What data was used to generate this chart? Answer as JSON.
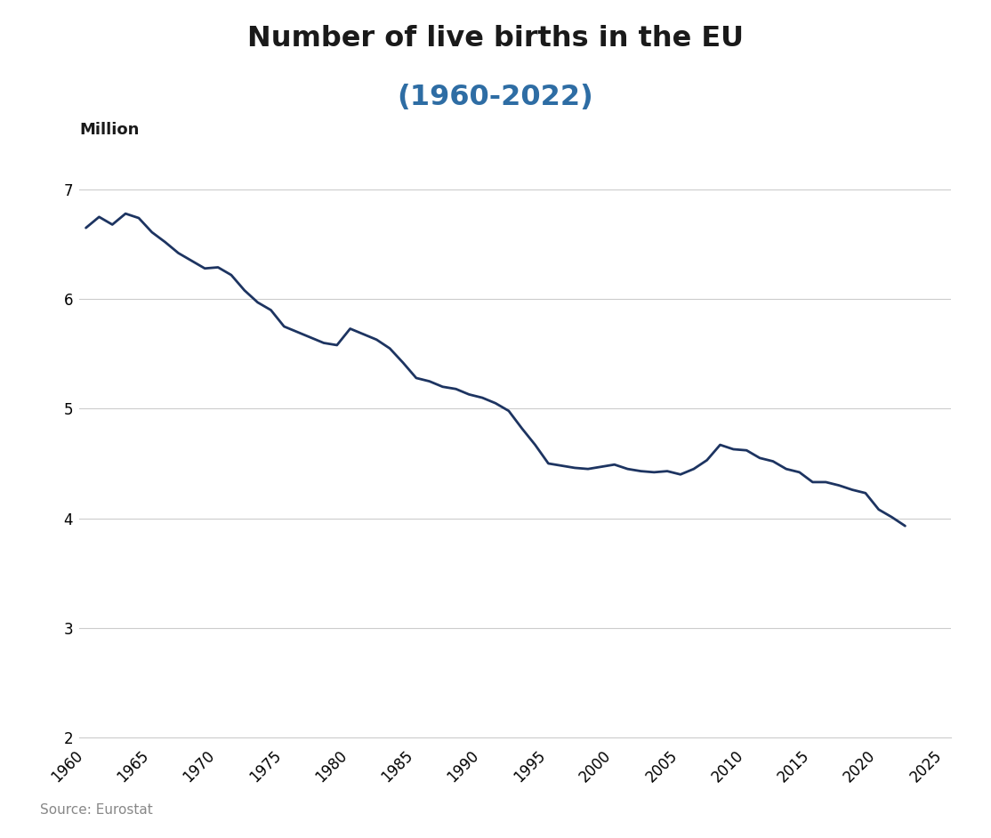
{
  "title_line1": "Number of live births in the EU",
  "title_line2": "(1960-2022)",
  "ylabel": "Million",
  "source": "Source: Eurostat",
  "line_color": "#1d3461",
  "background_color": "#ffffff",
  "title_color": "#1a1a1a",
  "subtitle_color": "#2e6da4",
  "grid_color": "#cccccc",
  "euronews_bg_color": "#4472c4",
  "years": [
    1960,
    1961,
    1962,
    1963,
    1964,
    1965,
    1966,
    1967,
    1968,
    1969,
    1970,
    1971,
    1972,
    1973,
    1974,
    1975,
    1976,
    1977,
    1978,
    1979,
    1980,
    1981,
    1982,
    1983,
    1984,
    1985,
    1986,
    1987,
    1988,
    1989,
    1990,
    1991,
    1992,
    1993,
    1994,
    1995,
    1996,
    1997,
    1998,
    1999,
    2000,
    2001,
    2002,
    2003,
    2004,
    2005,
    2006,
    2007,
    2008,
    2009,
    2010,
    2011,
    2012,
    2013,
    2014,
    2015,
    2016,
    2017,
    2018,
    2019,
    2020,
    2021,
    2022
  ],
  "values": [
    6.65,
    6.75,
    6.68,
    6.78,
    6.74,
    6.61,
    6.52,
    6.42,
    6.35,
    6.28,
    6.29,
    6.22,
    6.08,
    5.97,
    5.9,
    5.75,
    5.7,
    5.65,
    5.6,
    5.58,
    5.73,
    5.68,
    5.63,
    5.55,
    5.42,
    5.28,
    5.25,
    5.2,
    5.18,
    5.13,
    5.1,
    5.05,
    4.98,
    4.82,
    4.67,
    4.5,
    4.48,
    4.46,
    4.45,
    4.47,
    4.49,
    4.45,
    4.43,
    4.42,
    4.43,
    4.4,
    4.45,
    4.53,
    4.67,
    4.63,
    4.62,
    4.55,
    4.52,
    4.45,
    4.42,
    4.33,
    4.33,
    4.3,
    4.26,
    4.23,
    4.08,
    4.01,
    3.93
  ],
  "ylim": [
    2.0,
    7.2
  ],
  "xlim": [
    1959.5,
    2025.5
  ],
  "yticks": [
    2,
    3,
    4,
    5,
    6,
    7
  ],
  "xticks": [
    1960,
    1965,
    1970,
    1975,
    1980,
    1985,
    1990,
    1995,
    2000,
    2005,
    2010,
    2015,
    2020,
    2025
  ]
}
